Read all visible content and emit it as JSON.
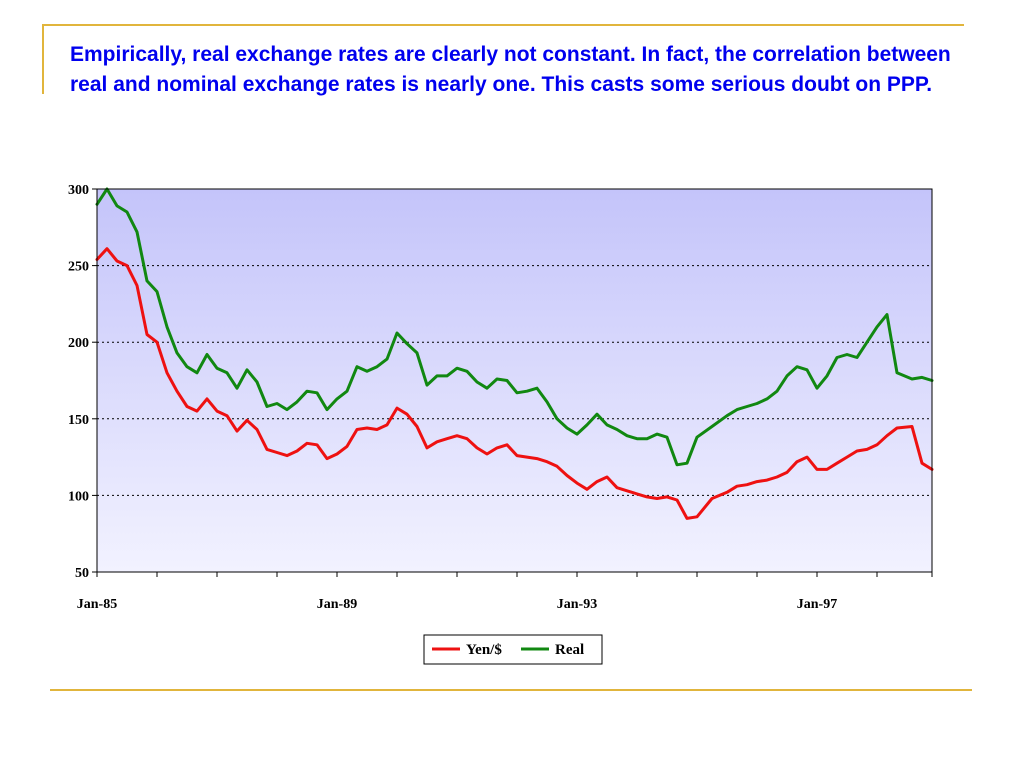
{
  "slide": {
    "title": "Empirically, real exchange rates are clearly not constant. In fact, the correlation between real and nominal exchange rates is nearly one.  This casts some serious doubt on PPP."
  },
  "colors": {
    "rule": "#e1b53c",
    "title": "#0000ee",
    "plot_bg_top": "#c4c4fa",
    "plot_bg_bottom": "#f2f2ff",
    "yen_series": "#ee1111",
    "real_series": "#118811"
  },
  "chart_data": {
    "type": "line",
    "title": "",
    "xlabel": "",
    "ylabel": "",
    "ylim": [
      50,
      300
    ],
    "yticks": [
      "50",
      "100",
      "150",
      "200",
      "250",
      "300"
    ],
    "xtick_labels": [
      "Jan-85",
      "Jan-89",
      "Jan-93",
      "Jan-97"
    ],
    "xlim": [
      "Jan-85",
      "Dec-98"
    ],
    "grid": true,
    "legend_position": "bottom-center",
    "series": [
      {
        "name": "Yen/$",
        "x": [
          "Jan-85",
          "Mar-85",
          "May-85",
          "Jul-85",
          "Sep-85",
          "Nov-85",
          "Jan-86",
          "Mar-86",
          "May-86",
          "Jul-86",
          "Sep-86",
          "Nov-86",
          "Jan-87",
          "Mar-87",
          "May-87",
          "Jul-87",
          "Sep-87",
          "Nov-87",
          "Jan-88",
          "Mar-88",
          "May-88",
          "Jul-88",
          "Sep-88",
          "Nov-88",
          "Jan-89",
          "Mar-89",
          "May-89",
          "Jul-89",
          "Sep-89",
          "Nov-89",
          "Jan-90",
          "Mar-90",
          "May-90",
          "Jul-90",
          "Sep-90",
          "Nov-90",
          "Jan-91",
          "Mar-91",
          "May-91",
          "Jul-91",
          "Sep-91",
          "Nov-91",
          "Jan-92",
          "Mar-92",
          "May-92",
          "Jul-92",
          "Sep-92",
          "Nov-92",
          "Jan-93",
          "Mar-93",
          "May-93",
          "Jul-93",
          "Sep-93",
          "Nov-93",
          "Jan-94",
          "Mar-94",
          "May-94",
          "Jul-94",
          "Sep-94",
          "Nov-94",
          "Jan-95",
          "Apr-95",
          "Jul-95",
          "Sep-95",
          "Nov-95",
          "Jan-96",
          "Mar-96",
          "May-96",
          "Jul-96",
          "Sep-96",
          "Nov-96",
          "Jan-97",
          "Mar-97",
          "May-97",
          "Jul-97",
          "Sep-97",
          "Nov-97",
          "Jan-98",
          "Mar-98",
          "May-98",
          "Aug-98",
          "Oct-98",
          "Dec-98"
        ],
        "values": [
          254,
          261,
          253,
          250,
          237,
          205,
          200,
          180,
          168,
          158,
          155,
          163,
          155,
          152,
          142,
          149,
          143,
          130,
          128,
          126,
          129,
          134,
          133,
          124,
          127,
          132,
          143,
          144,
          143,
          146,
          157,
          153,
          145,
          131,
          135,
          137,
          139,
          137,
          131,
          127,
          131,
          133,
          126,
          125,
          124,
          122,
          119,
          113,
          108,
          104,
          109,
          112,
          105,
          103,
          101,
          99,
          98,
          99,
          97,
          85,
          86,
          98,
          102,
          106,
          107,
          109,
          110,
          112,
          115,
          122,
          125,
          117,
          117,
          121,
          125,
          129,
          130,
          133,
          139,
          144,
          145,
          121,
          117
        ]
      },
      {
        "name": "Real",
        "x": [
          "Jan-85",
          "Mar-85",
          "May-85",
          "Jul-85",
          "Sep-85",
          "Nov-85",
          "Jan-86",
          "Mar-86",
          "May-86",
          "Jul-86",
          "Sep-86",
          "Nov-86",
          "Jan-87",
          "Mar-87",
          "May-87",
          "Jul-87",
          "Sep-87",
          "Nov-87",
          "Jan-88",
          "Mar-88",
          "May-88",
          "Jul-88",
          "Sep-88",
          "Nov-88",
          "Jan-89",
          "Mar-89",
          "May-89",
          "Jul-89",
          "Sep-89",
          "Nov-89",
          "Jan-90",
          "Mar-90",
          "May-90",
          "Jul-90",
          "Sep-90",
          "Nov-90",
          "Jan-91",
          "Mar-91",
          "May-91",
          "Jul-91",
          "Sep-91",
          "Nov-91",
          "Jan-92",
          "Mar-92",
          "May-92",
          "Jul-92",
          "Sep-92",
          "Nov-92",
          "Jan-93",
          "Mar-93",
          "May-93",
          "Jul-93",
          "Sep-93",
          "Nov-93",
          "Jan-94",
          "Mar-94",
          "May-94",
          "Jul-94",
          "Sep-94",
          "Nov-94",
          "Jan-95",
          "Apr-95",
          "Jul-95",
          "Sep-95",
          "Nov-95",
          "Jan-96",
          "Mar-96",
          "May-96",
          "Jul-96",
          "Sep-96",
          "Nov-96",
          "Jan-97",
          "Mar-97",
          "May-97",
          "Jul-97",
          "Sep-97",
          "Nov-97",
          "Jan-98",
          "Mar-98",
          "May-98",
          "Aug-98",
          "Oct-98",
          "Dec-98"
        ],
        "values": [
          290,
          300,
          289,
          285,
          272,
          240,
          233,
          210,
          193,
          184,
          180,
          192,
          183,
          180,
          170,
          182,
          174,
          158,
          160,
          156,
          161,
          168,
          167,
          156,
          163,
          168,
          184,
          181,
          184,
          189,
          206,
          199,
          193,
          172,
          178,
          178,
          183,
          181,
          174,
          170,
          176,
          175,
          167,
          168,
          170,
          161,
          150,
          144,
          140,
          146,
          153,
          146,
          143,
          139,
          137,
          137,
          140,
          138,
          120,
          121,
          138,
          145,
          152,
          156,
          158,
          160,
          163,
          168,
          178,
          184,
          182,
          170,
          178,
          190,
          192,
          190,
          200,
          210,
          218,
          180,
          176,
          177,
          175
        ]
      }
    ]
  }
}
